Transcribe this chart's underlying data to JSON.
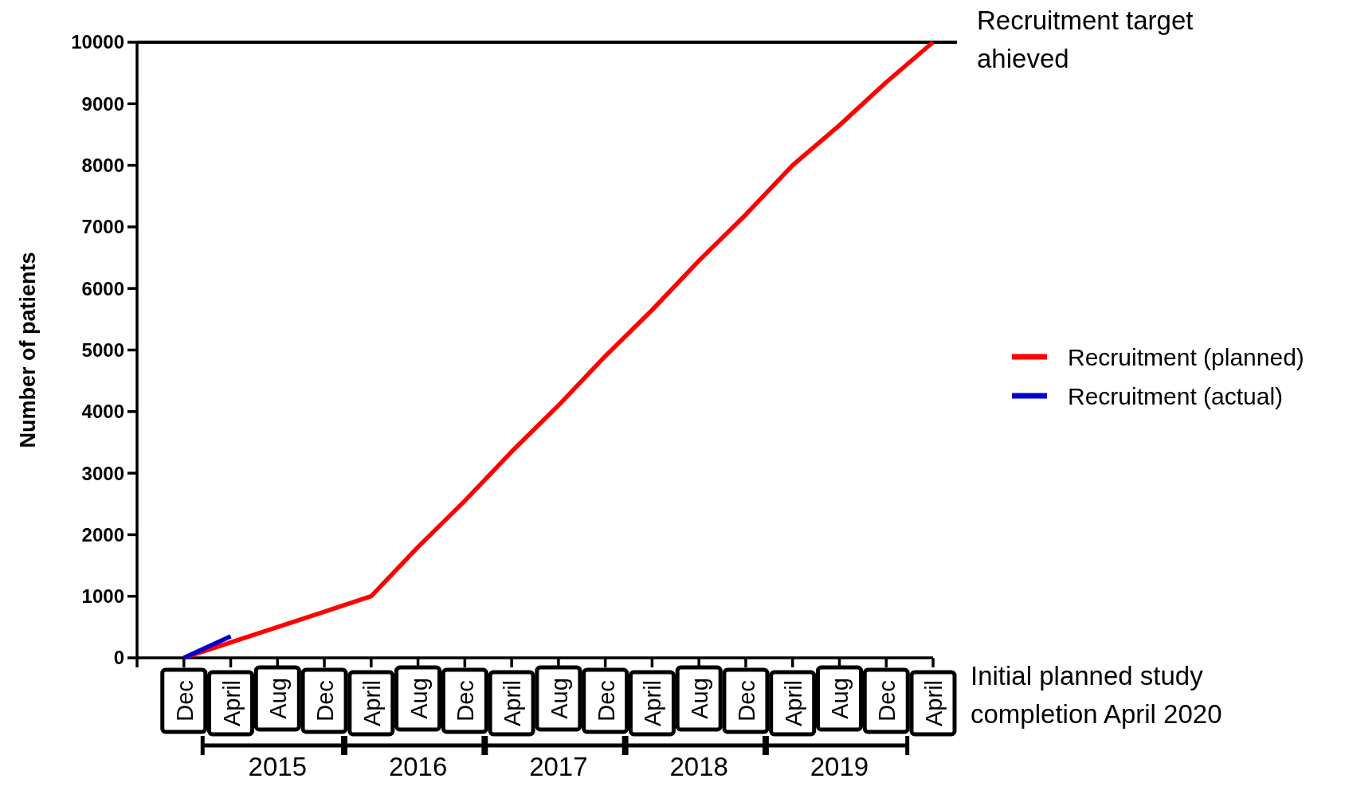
{
  "chart_data": {
    "type": "line",
    "ylabel": "Number of patients",
    "categories": [
      null,
      "Dec",
      "April",
      "Aug",
      "Dec",
      "April",
      "Aug",
      "Dec",
      "April",
      "Aug",
      "Dec",
      "April",
      "Aug",
      "Dec",
      "April",
      "Aug",
      "Dec",
      "April"
    ],
    "series": [
      {
        "name": "Recruitment (planned)",
        "color": "#ff0000",
        "values": [
          null,
          0,
          250,
          500,
          750,
          1000,
          1800,
          2550,
          3350,
          4100,
          4900,
          5650,
          6450,
          7200,
          8000,
          8650,
          9350,
          10000
        ]
      },
      {
        "name": "Recruitment (actual)",
        "color": "#0000cc",
        "values": [
          null,
          0,
          350,
          null,
          null,
          null,
          null,
          null,
          null,
          null,
          null,
          null,
          null,
          null,
          null,
          null,
          null,
          null
        ]
      }
    ],
    "ylim": [
      0,
      10000
    ],
    "yticks": [
      0,
      1000,
      2000,
      3000,
      4000,
      5000,
      6000,
      7000,
      8000,
      9000,
      10000
    ],
    "ref_lines": [
      {
        "axis": "y",
        "value": 10000,
        "label": "Recruitment target ahieved",
        "color": "#000000"
      }
    ],
    "annotations": [
      "2015",
      "2016",
      "2017",
      "2018",
      "2019",
      "Initial planned study completion April 2020"
    ],
    "legend": "right",
    "grid": false,
    "line_style": "solid"
  }
}
